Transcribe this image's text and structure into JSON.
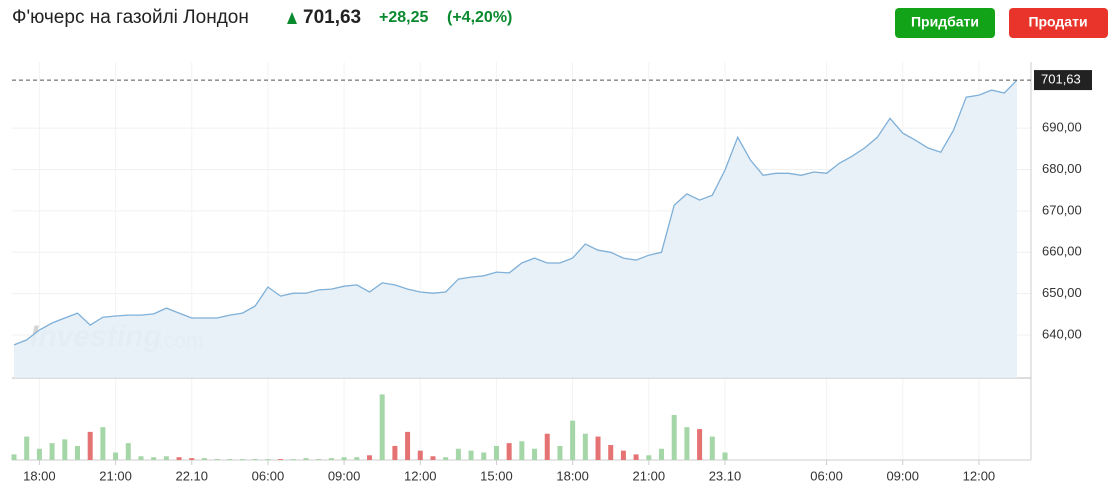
{
  "chart_data": {
    "type": "line",
    "title": "Ф'ючерс на газойлі Лондон",
    "price": "701,63",
    "change": "+28,25",
    "change_pct": "(+4,20%)",
    "buttons": [
      "Придбати",
      "Продати"
    ],
    "watermark": [
      "Investing",
      ".com"
    ],
    "color": "#7fb0d8",
    "area_color": "#e6eef7",
    "up_color": "#a5d6a7",
    "down_color": "#e57373",
    "ylim": [
      629.6,
      706
    ],
    "yticks": [
      {
        "value": 640,
        "label": "640,00"
      },
      {
        "value": 650,
        "label": "650,00"
      },
      {
        "value": 660,
        "label": "660,00"
      },
      {
        "value": 670,
        "label": "670,00"
      },
      {
        "value": 680,
        "label": "680,00"
      },
      {
        "value": 690,
        "label": "690,00"
      }
    ],
    "last_price": {
      "value": 701.63,
      "label": "701,63"
    },
    "grid": true,
    "categories": [
      null,
      null,
      "18:00",
      null,
      null,
      null,
      null,
      null,
      "21:00",
      null,
      null,
      null,
      null,
      null,
      "22.10",
      null,
      null,
      null,
      null,
      null,
      "06:00",
      null,
      null,
      null,
      null,
      null,
      "09:00",
      null,
      null,
      null,
      null,
      null,
      "12:00",
      null,
      null,
      null,
      null,
      null,
      "15:00",
      null,
      null,
      null,
      null,
      null,
      "18:00",
      null,
      null,
      null,
      null,
      null,
      "21:00",
      null,
      null,
      null,
      null,
      null,
      "23.10",
      null,
      null,
      null,
      null,
      null,
      null,
      null,
      "06:00",
      null,
      null,
      null,
      null,
      null,
      "09:00",
      null,
      null,
      null,
      null,
      null,
      "12:00",
      null,
      null,
      null
    ],
    "values": [
      637.6,
      638.8,
      641.2,
      642.9,
      644.1,
      645.3,
      642.4,
      644.3,
      644.6,
      644.8,
      644.8,
      645.1,
      646.5,
      645.3,
      644.1,
      644.1,
      644.1,
      644.8,
      645.3,
      647.0,
      651.6,
      649.4,
      650.1,
      650.1,
      650.9,
      651.1,
      651.8,
      652.1,
      650.4,
      652.6,
      652.1,
      651.1,
      650.4,
      650.1,
      650.4,
      653.5,
      654.0,
      654.3,
      655.2,
      655.0,
      657.4,
      658.6,
      657.4,
      657.4,
      658.6,
      662.0,
      660.5,
      660.0,
      658.6,
      658.1,
      659.3,
      660.0,
      671.4,
      674.1,
      672.6,
      673.8,
      679.9,
      687.8,
      682.3,
      678.6,
      679.1,
      679.1,
      678.6,
      679.4,
      679.1,
      681.5,
      683.2,
      685.2,
      687.8,
      692.4,
      688.8,
      687.1,
      685.2,
      684.2,
      689.5,
      697.5,
      698.0,
      699.2,
      698.5,
      701.63
    ],
    "volume": {
      "lim": [
        0,
        80
      ],
      "values": [
        6,
        25,
        12,
        18,
        22,
        15,
        30,
        35,
        8,
        18,
        4,
        3,
        4,
        3,
        2,
        2,
        1,
        1,
        1,
        1,
        1,
        1,
        1,
        2,
        1,
        2,
        3,
        3,
        5,
        70,
        15,
        30,
        10,
        4,
        3,
        12,
        10,
        8,
        15,
        18,
        20,
        12,
        28,
        15,
        42,
        28,
        25,
        16,
        10,
        6,
        5,
        12,
        48,
        35,
        33,
        25,
        8,
        0,
        0,
        0,
        0,
        0,
        0,
        0,
        0,
        0,
        0,
        0,
        0,
        0,
        0,
        0,
        0,
        0,
        0,
        0,
        0,
        0,
        0,
        0
      ]
    }
  }
}
